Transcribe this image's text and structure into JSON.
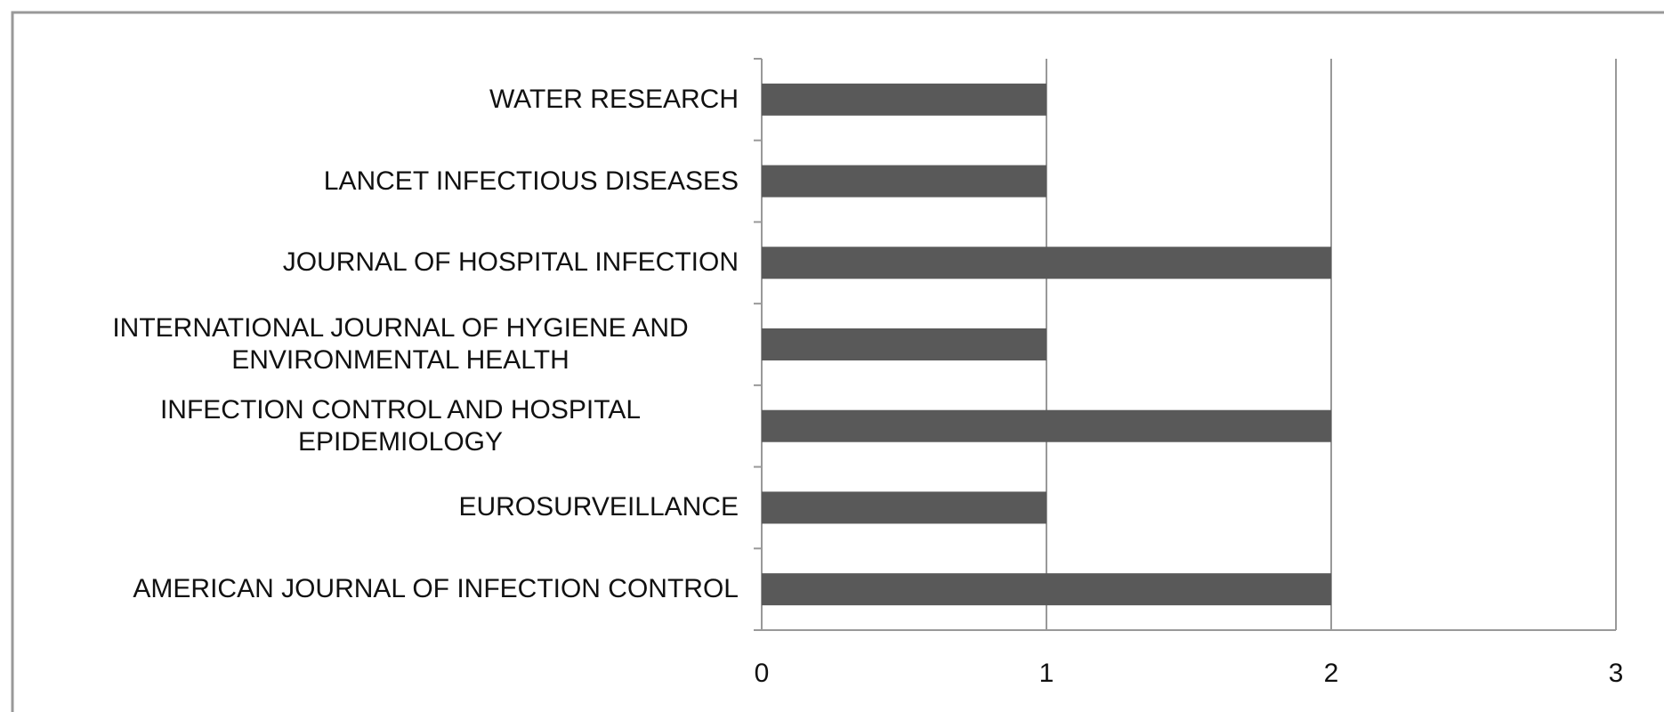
{
  "chart_data": {
    "type": "barh",
    "categories": [
      "WATER RESEARCH",
      "LANCET INFECTIOUS DISEASES",
      "JOURNAL OF HOSPITAL INFECTION",
      "INTERNATIONAL JOURNAL OF HYGIENE AND ENVIRONMENTAL HEALTH",
      "INFECTION CONTROL AND HOSPITAL EPIDEMIOLOGY",
      "EUROSURVEILLANCE",
      "AMERICAN JOURNAL OF INFECTION CONTROL"
    ],
    "values": [
      1,
      1,
      2,
      1,
      2,
      1,
      2
    ],
    "color": "#595959",
    "xlim": [
      0,
      3
    ],
    "xticks": [
      0,
      1,
      2,
      3
    ],
    "grid": true
  }
}
